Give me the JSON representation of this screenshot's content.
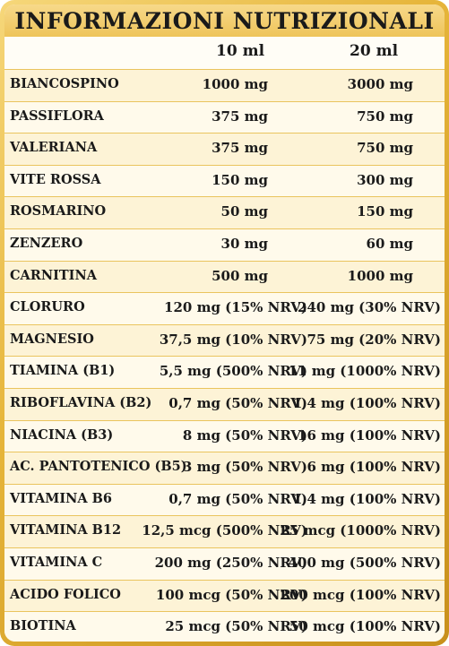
{
  "title": "INFORMAZIONI NUTRIZIONALI",
  "columns": [
    "10 ml",
    "20 ml"
  ],
  "rows": [
    {
      "name": "BIANCOSPINO",
      "v10": "1000 mg",
      "v20": "3000 mg"
    },
    {
      "name": "PASSIFLORA",
      "v10": "375 mg",
      "v20": "750 mg"
    },
    {
      "name": "VALERIANA",
      "v10": "375 mg",
      "v20": "750 mg"
    },
    {
      "name": "VITE ROSSA",
      "v10": "150 mg",
      "v20": "300 mg"
    },
    {
      "name": "ROSMARINO",
      "v10": "50 mg",
      "v20": "150 mg"
    },
    {
      "name": "ZENZERO",
      "v10": "30 mg",
      "v20": "60 mg"
    },
    {
      "name": "CARNITINA",
      "v10": "500 mg",
      "v20": "1000 mg"
    },
    {
      "name": "CLORURO",
      "v10": "120 mg (15% NRV)",
      "v20": "240 mg (30% NRV)"
    },
    {
      "name": "MAGNESIO",
      "v10": "37,5 mg (10% NRV)",
      "v20": "75 mg (20% NRV)"
    },
    {
      "name": "TIAMINA (B1)",
      "v10": "5,5 mg (500% NRV)",
      "v20": "11 mg (1000% NRV)"
    },
    {
      "name": "RIBOFLAVINA (B2)",
      "v10": "0,7 mg (50% NRV)",
      "v20": "1,4 mg (100% NRV)"
    },
    {
      "name": "NIACINA (B3)",
      "v10": "8 mg (50% NRV)",
      "v20": "16 mg (100% NRV)"
    },
    {
      "name": "AC. PANTOTENICO (B5)",
      "v10": "3 mg (50% NRV)",
      "v20": "6 mg (100% NRV)"
    },
    {
      "name": "VITAMINA B6",
      "v10": "0,7 mg (50% NRV)",
      "v20": "1,4 mg (100% NRV)"
    },
    {
      "name": "VITAMINA B12",
      "v10": "12,5 mcg (500% NRV)",
      "v20": "25 mcg (1000% NRV)"
    },
    {
      "name": "VITAMINA C",
      "v10": "200 mg (250% NRV)",
      "v20": "400 mg (500% NRV)"
    },
    {
      "name": "ACIDO FOLICO",
      "v10": "100 mcg (50% NRV)",
      "v20": "200 mcg (100% NRV)"
    },
    {
      "name": "BIOTINA",
      "v10": "25 mcg (50% NRV)",
      "v20": "50 mcg (100% NRV)"
    }
  ]
}
